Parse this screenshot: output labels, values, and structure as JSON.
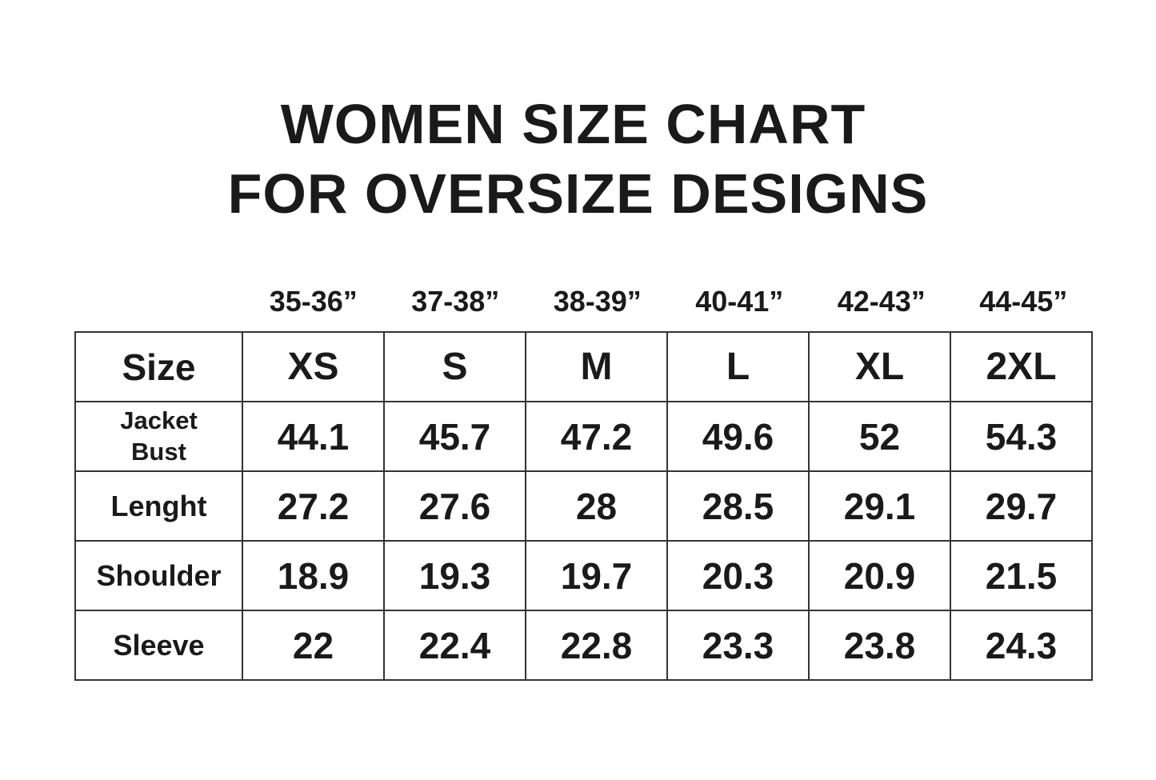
{
  "title_line1": "WOMEN SIZE CHART",
  "title_line2": "FOR OVERSIZE DESIGNS",
  "chart_data": {
    "type": "table",
    "title": "WOMEN SIZE CHART FOR OVERSIZE DESIGNS",
    "bust_ranges": [
      "35-36”",
      "37-38”",
      "38-39”",
      "40-41”",
      "42-43”",
      "44-45”"
    ],
    "header": {
      "label": "Size",
      "sizes": [
        "XS",
        "S",
        "M",
        "L",
        "XL",
        "2XL"
      ]
    },
    "rows": [
      {
        "label_line1": "Jacket",
        "label_line2": "Bust",
        "values": [
          "44.1",
          "45.7",
          "47.2",
          "49.6",
          "52",
          "54.3"
        ]
      },
      {
        "label": "Lenght",
        "values": [
          "27.2",
          "27.6",
          "28",
          "28.5",
          "29.1",
          "29.7"
        ]
      },
      {
        "label": "Shoulder",
        "values": [
          "18.9",
          "19.3",
          "19.7",
          "20.3",
          "20.9",
          "21.5"
        ]
      },
      {
        "label": "Sleeve",
        "values": [
          "22",
          "22.4",
          "22.8",
          "23.3",
          "23.8",
          "24.3"
        ]
      }
    ]
  }
}
